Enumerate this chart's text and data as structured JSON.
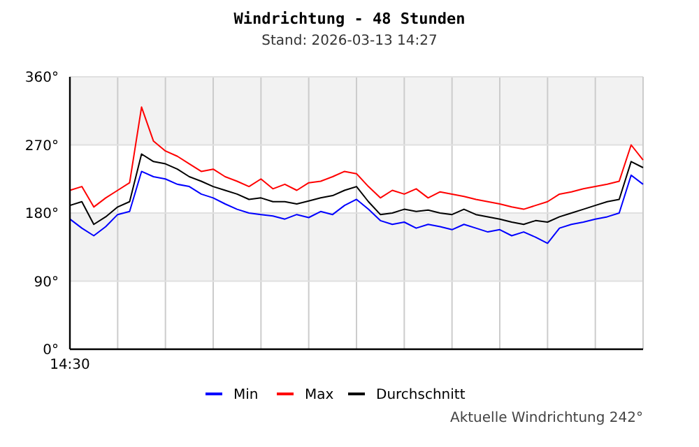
{
  "chart_data": {
    "type": "line",
    "title": "Windrichtung - 48 Stunden",
    "subtitle": "Stand: 2026-03-13 14:27",
    "categories": [
      "14:30",
      null,
      null,
      null,
      null,
      null,
      null,
      null,
      null,
      null,
      null,
      null,
      null,
      null,
      null,
      null,
      null,
      null,
      null,
      null,
      null,
      null,
      null,
      null,
      null,
      null,
      null,
      null,
      null,
      null,
      null,
      null,
      null,
      null,
      null,
      null,
      null,
      null,
      null,
      null,
      null,
      null,
      null,
      null,
      null,
      null,
      null,
      null,
      null
    ],
    "series": [
      {
        "name": "Min",
        "color": "#0000ff",
        "values": [
          172,
          160,
          150,
          162,
          178,
          182,
          235,
          228,
          225,
          218,
          215,
          205,
          200,
          192,
          185,
          180,
          178,
          176,
          172,
          178,
          174,
          182,
          178,
          190,
          198,
          185,
          170,
          165,
          168,
          160,
          165,
          162,
          158,
          165,
          160,
          155,
          158,
          150,
          155,
          148,
          140,
          160,
          165,
          168,
          172,
          175,
          180,
          230,
          218
        ]
      },
      {
        "name": "Max",
        "color": "#ff0000",
        "values": [
          210,
          215,
          188,
          200,
          210,
          220,
          320,
          275,
          262,
          255,
          245,
          235,
          238,
          228,
          222,
          215,
          225,
          212,
          218,
          210,
          220,
          222,
          228,
          235,
          232,
          215,
          200,
          210,
          205,
          212,
          200,
          208,
          205,
          202,
          198,
          195,
          192,
          188,
          185,
          190,
          195,
          205,
          208,
          212,
          215,
          218,
          222,
          270,
          250
        ]
      },
      {
        "name": "Durchschnitt",
        "color": "#000000",
        "values": [
          190,
          195,
          165,
          175,
          188,
          195,
          258,
          248,
          245,
          238,
          228,
          222,
          215,
          210,
          205,
          198,
          200,
          195,
          195,
          192,
          196,
          200,
          203,
          210,
          215,
          195,
          178,
          180,
          185,
          182,
          184,
          180,
          178,
          185,
          178,
          175,
          172,
          168,
          165,
          170,
          168,
          175,
          180,
          185,
          190,
          195,
          198,
          248,
          240
        ]
      }
    ],
    "ylim": [
      0,
      360
    ],
    "yticks": [
      {
        "value": 0,
        "label": "0°"
      },
      {
        "value": 90,
        "label": "90°"
      },
      {
        "value": 180,
        "label": "180°"
      },
      {
        "value": 270,
        "label": "270°"
      },
      {
        "value": 360,
        "label": "360°"
      }
    ],
    "bands": [
      {
        "axis": "y",
        "from": 90,
        "to": 180,
        "color": "#f2f2f2"
      },
      {
        "axis": "y",
        "from": 270,
        "to": 360,
        "color": "#f2f2f2"
      }
    ],
    "grid": true,
    "legend": "bottom",
    "line_style": "solid",
    "marker": "none",
    "annotations": [
      "Aktuelle Windrichtung 242°"
    ]
  }
}
